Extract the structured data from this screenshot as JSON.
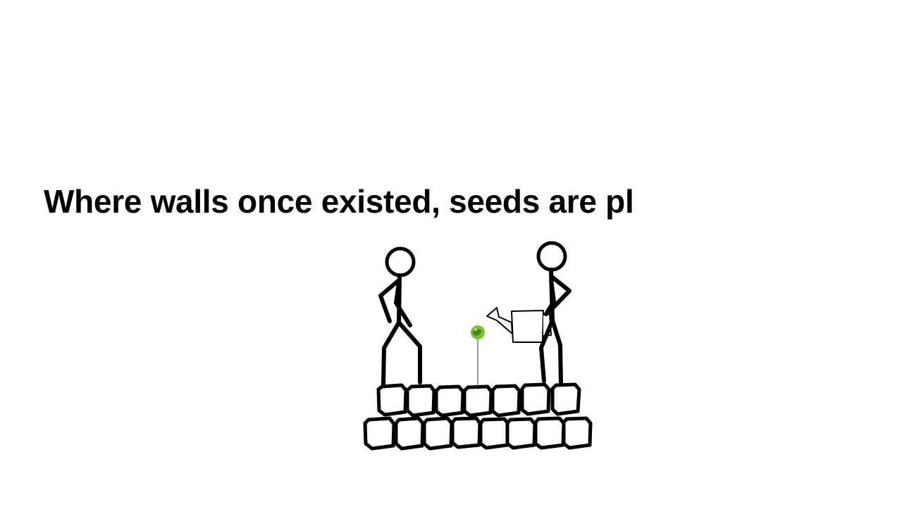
{
  "slide": {
    "caption": "Where walls once existed, seeds are pl"
  },
  "scene": {
    "description_icons": [
      "stick-figure-icon",
      "watering-can-icon",
      "sprout-icon",
      "brick-wall-icon"
    ],
    "colors": {
      "ink": "#000000",
      "background": "#ffffff",
      "sprout_outer": "#7ac231",
      "sprout_inner": "#3e8e1f"
    }
  }
}
